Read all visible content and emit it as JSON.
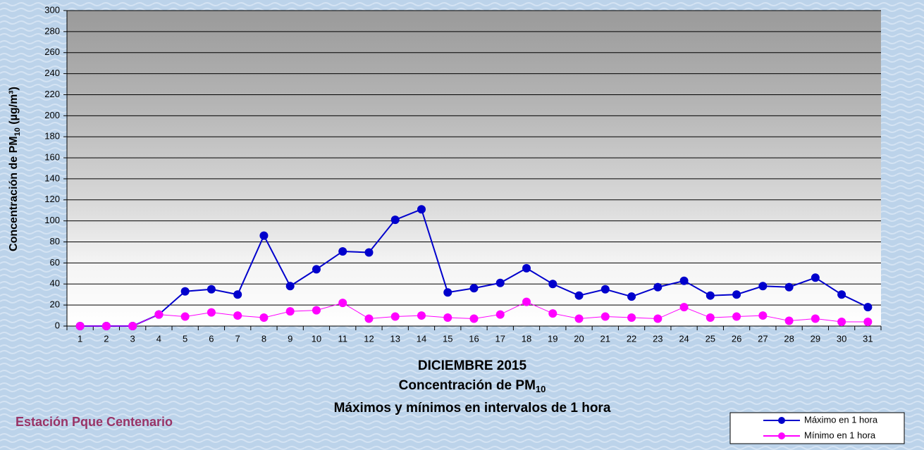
{
  "chart_data": {
    "type": "line",
    "title": [
      "DICIEMBRE 2015",
      {
        "main": "Concentración de PM",
        "sub": "10"
      },
      "Máximos y mínimos en intervalos de 1 hora"
    ],
    "ylabel": {
      "main": "Concentración de PM",
      "sub": "10",
      "after": " (µg/m³)"
    },
    "annotation": "Estación Pque Centenario",
    "categories": [
      "1",
      "2",
      "3",
      "4",
      "5",
      "6",
      "7",
      "8",
      "9",
      "10",
      "11",
      "12",
      "13",
      "14",
      "15",
      "16",
      "17",
      "18",
      "19",
      "20",
      "21",
      "22",
      "23",
      "24",
      "25",
      "26",
      "27",
      "28",
      "29",
      "30",
      "31"
    ],
    "series": [
      {
        "name": "Máximo en 1 hora",
        "color": "#0000cc",
        "values": [
          0,
          0,
          0,
          11,
          33,
          35,
          30,
          86,
          38,
          54,
          71,
          70,
          101,
          111,
          32,
          36,
          41,
          55,
          40,
          29,
          35,
          28,
          37,
          43,
          29,
          30,
          38,
          37,
          46,
          30,
          18
        ]
      },
      {
        "name": "Mínimo en 1 hora",
        "color": "#ff00ff",
        "values": [
          0,
          0,
          0,
          11,
          9,
          13,
          10,
          8,
          14,
          15,
          22,
          7,
          9,
          10,
          8,
          7,
          11,
          23,
          12,
          7,
          9,
          8,
          7,
          18,
          8,
          9,
          10,
          5,
          7,
          4,
          4
        ]
      }
    ],
    "ylim": [
      0,
      300
    ],
    "yticks": [
      0,
      20,
      40,
      60,
      80,
      100,
      120,
      140,
      160,
      180,
      200,
      220,
      240,
      260,
      280,
      300
    ],
    "grid": true,
    "legend": "bottom-right"
  }
}
